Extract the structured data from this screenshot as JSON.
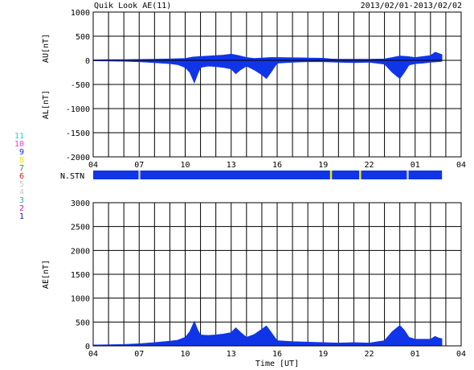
{
  "header": {
    "title": "Quik Look AE(11)",
    "date_range": "2013/02/01-2013/02/02"
  },
  "stations": {
    "label": "N.STN",
    "legend": [
      {
        "label": "11",
        "color": "#22d3d3"
      },
      {
        "label": "10",
        "color": "#e040e0"
      },
      {
        "label": "9",
        "color": "#1a1aff"
      },
      {
        "label": "8",
        "color": "#e8e800"
      },
      {
        "label": "7",
        "color": "#2aa02a"
      },
      {
        "label": "6",
        "color": "#e02020"
      },
      {
        "label": "5",
        "color": "#c8c8c8"
      },
      {
        "label": "4",
        "color": "#c8c8c8"
      },
      {
        "label": "3",
        "color": "#4aa0a0"
      },
      {
        "label": "2",
        "color": "#c020c0"
      },
      {
        "label": "1",
        "color": "#1a1a9a"
      }
    ],
    "bar_color": "#1035e8",
    "drops_at_hours": [
      7.0,
      19.5,
      21.4,
      24.5
    ],
    "drop_colors": [
      "#c8c8c8",
      "#e8e800",
      "#e8e800",
      "#c8c8c8"
    ],
    "data_end_hour": 26.75
  },
  "chart_data": [
    {
      "type": "area",
      "name": "AU/AL panel",
      "ylabel_top": "AU[nT]",
      "ylabel_bottom": "AL[nT]",
      "xlabel": "",
      "ylim": [
        -2000,
        1000
      ],
      "yticks": [
        1000,
        500,
        0,
        -500,
        -1000,
        -1500,
        -2000
      ],
      "xlim": [
        4,
        28
      ],
      "xticks": [
        "04",
        "07",
        "10",
        "13",
        "16",
        "19",
        "22",
        "01",
        "04"
      ],
      "grid": true,
      "color": "#1035e8",
      "series": [
        {
          "role": "AU",
          "x": [
            4.0,
            5.0,
            6.0,
            7.0,
            8.0,
            9.0,
            10.0,
            10.5,
            11.0,
            11.5,
            12.0,
            12.5,
            13.0,
            13.5,
            14.0,
            14.5,
            15.0,
            15.5,
            16.0,
            17.0,
            18.0,
            19.0,
            19.5,
            20.0,
            21.0,
            22.0,
            23.0,
            23.5,
            24.0,
            24.5,
            25.0,
            25.5,
            26.0,
            26.3,
            26.5,
            26.75
          ],
          "values": [
            10,
            15,
            15,
            20,
            25,
            30,
            40,
            70,
            80,
            90,
            100,
            110,
            130,
            100,
            60,
            40,
            50,
            60,
            60,
            55,
            50,
            45,
            30,
            25,
            25,
            25,
            30,
            60,
            90,
            80,
            60,
            80,
            100,
            170,
            150,
            120
          ]
        },
        {
          "role": "AL",
          "x": [
            4.0,
            5.0,
            6.0,
            7.0,
            8.0,
            9.0,
            9.5,
            10.0,
            10.3,
            10.6,
            10.8,
            11.0,
            11.5,
            12.0,
            12.5,
            13.0,
            13.3,
            13.6,
            14.0,
            14.5,
            15.0,
            15.3,
            15.6,
            16.0,
            17.0,
            18.0,
            19.0,
            20.0,
            21.0,
            22.0,
            23.0,
            23.5,
            24.0,
            24.3,
            24.6,
            25.0,
            25.5,
            26.0,
            26.5,
            26.75
          ],
          "values": [
            -10,
            -15,
            -20,
            -30,
            -50,
            -70,
            -90,
            -150,
            -250,
            -470,
            -300,
            -150,
            -120,
            -130,
            -150,
            -180,
            -280,
            -200,
            -120,
            -200,
            -300,
            -380,
            -250,
            -60,
            -40,
            -30,
            -30,
            -40,
            -50,
            -40,
            -80,
            -250,
            -380,
            -250,
            -100,
            -70,
            -60,
            -40,
            -30,
            -20
          ]
        }
      ]
    },
    {
      "type": "area",
      "name": "AE panel",
      "ylabel": "AE[nT]",
      "xlabel": "Time [UT]",
      "ylim": [
        0,
        3000
      ],
      "yticks": [
        3000,
        2500,
        2000,
        1500,
        1000,
        500,
        0
      ],
      "xlim": [
        4,
        28
      ],
      "xticks": [
        "04",
        "07",
        "10",
        "13",
        "16",
        "19",
        "22",
        "01",
        "04"
      ],
      "grid": true,
      "color": "#1035e8",
      "series": [
        {
          "role": "AE",
          "x": [
            4.0,
            5.0,
            6.0,
            7.0,
            8.0,
            9.0,
            9.5,
            10.0,
            10.3,
            10.6,
            10.8,
            11.0,
            11.5,
            12.0,
            12.5,
            13.0,
            13.3,
            13.6,
            14.0,
            14.5,
            15.0,
            15.3,
            15.6,
            16.0,
            17.0,
            18.0,
            19.0,
            20.0,
            21.0,
            22.0,
            23.0,
            23.5,
            24.0,
            24.3,
            24.6,
            25.0,
            25.5,
            26.0,
            26.3,
            26.5,
            26.75
          ],
          "values": [
            20,
            25,
            30,
            45,
            70,
            100,
            120,
            180,
            300,
            520,
            350,
            230,
            220,
            230,
            250,
            280,
            380,
            290,
            180,
            240,
            350,
            420,
            290,
            110,
            90,
            80,
            70,
            60,
            70,
            60,
            110,
            300,
            430,
            330,
            180,
            140,
            140,
            140,
            200,
            170,
            150
          ]
        }
      ]
    }
  ]
}
